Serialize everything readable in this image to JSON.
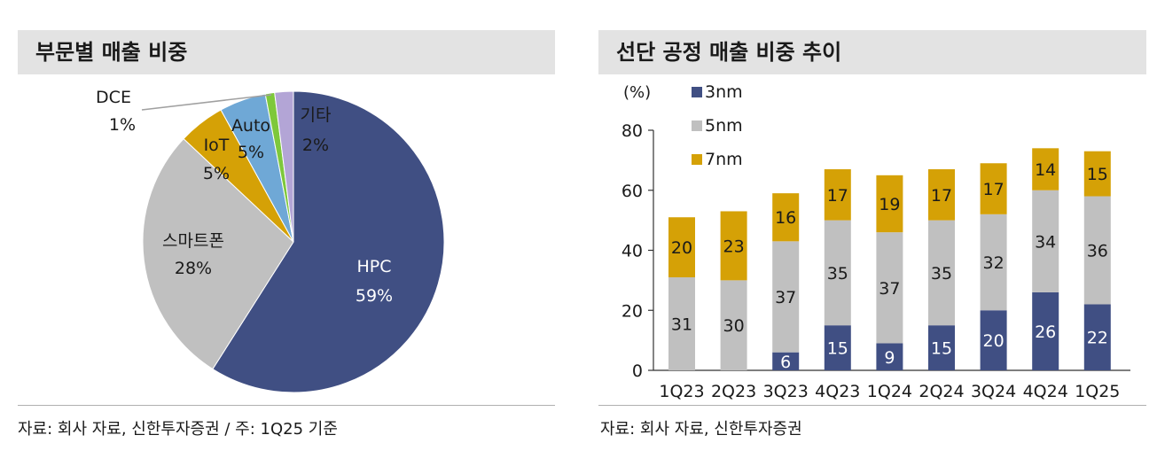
{
  "left": {
    "title": "부문별 매출 비중",
    "source": "자료: 회사 자료, 신한투자증권 / 주: 1Q25 기준"
  },
  "right": {
    "title": "선단 공정 매출 비중 추이",
    "source": "자료: 회사 자료, 신한투자증권"
  },
  "chart_data": [
    {
      "type": "pie",
      "title": "부문별 매출 비중",
      "slices": [
        {
          "name": "HPC",
          "value": 59,
          "label": "59%",
          "color": "#404f83"
        },
        {
          "name": "스마트폰",
          "value": 28,
          "label": "28%",
          "color": "#c0c0c0"
        },
        {
          "name": "IoT",
          "value": 5,
          "label": "5%",
          "color": "#d5a106"
        },
        {
          "name": "Auto",
          "value": 5,
          "label": "5%",
          "color": "#6fa8d6"
        },
        {
          "name": "DCE",
          "value": 1,
          "label": "1%",
          "color": "#7ec83b"
        },
        {
          "name": "기타",
          "value": 2,
          "label": "2%",
          "color": "#b3a5d6"
        }
      ]
    },
    {
      "type": "bar",
      "stacked": true,
      "title": "선단 공정 매출 비중 추이",
      "ylabel": "(%)",
      "ylim": [
        0,
        80
      ],
      "yticks": [
        0,
        20,
        40,
        60,
        80
      ],
      "categories": [
        "1Q23",
        "2Q23",
        "3Q23",
        "4Q23",
        "1Q24",
        "2Q24",
        "3Q24",
        "4Q24",
        "1Q25"
      ],
      "series": [
        {
          "name": "3nm",
          "color": "#404f83",
          "label_color": "#ffffff",
          "values": [
            0,
            0,
            6,
            15,
            9,
            15,
            20,
            26,
            22
          ]
        },
        {
          "name": "5nm",
          "color": "#c0c0c0",
          "label_color": "#1a1a1a",
          "values": [
            31,
            30,
            37,
            35,
            37,
            35,
            32,
            34,
            36
          ]
        },
        {
          "name": "7nm",
          "color": "#d5a106",
          "label_color": "#1a1a1a",
          "values": [
            20,
            23,
            16,
            17,
            19,
            17,
            17,
            14,
            15
          ]
        }
      ],
      "legend_position": "top-left"
    }
  ]
}
